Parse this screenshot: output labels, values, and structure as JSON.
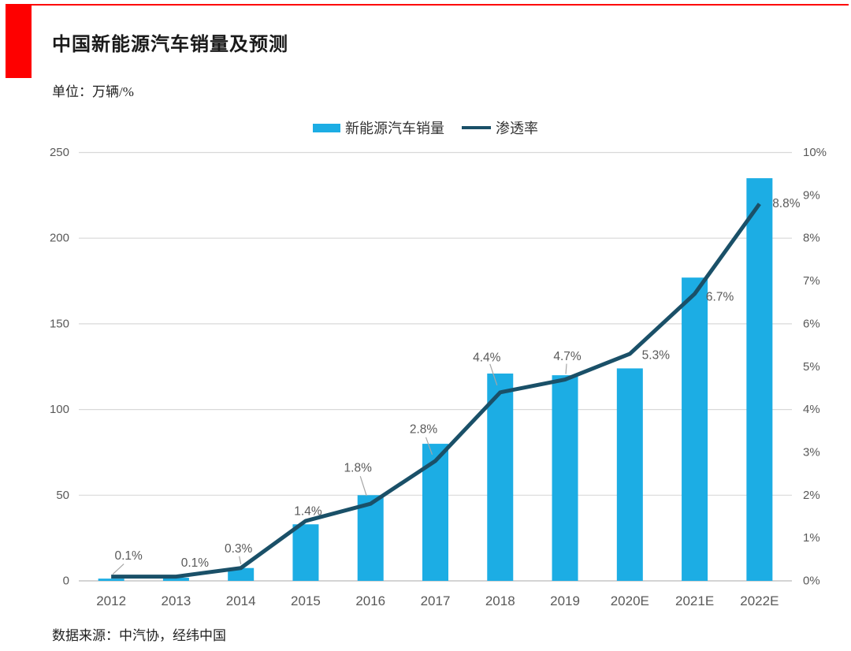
{
  "page": {
    "title": "中国新能源汽车销量及预测",
    "unit_label": "单位：万辆/%",
    "source": "数据来源：中汽协，经纬中国"
  },
  "colors": {
    "accent_red": "#FE0000",
    "bar": "#1CADE4",
    "line": "#1A5068",
    "grid": "#D9D9D9",
    "baseline": "#C6C6C6",
    "axis_text": "#595959",
    "data_label_text": "#595959",
    "leader_line": "#A6A6A6",
    "title_text": "#1A1A1A",
    "legend_text": "#333333",
    "serif_text": "#1F1F1F",
    "background": "#FFFFFF"
  },
  "chart_data": {
    "type": "bar+line combo",
    "title": "中国新能源汽车销量及预测",
    "unit": "万辆/%",
    "categories": [
      "2012",
      "2013",
      "2014",
      "2015",
      "2016",
      "2017",
      "2018",
      "2019",
      "2020E",
      "2021E",
      "2022E"
    ],
    "series": [
      {
        "name": "新能源汽车销量",
        "chart_type": "bar",
        "axis": "left",
        "values": [
          1.3,
          1.8,
          7.5,
          33,
          50,
          80,
          121,
          120,
          124,
          177,
          235
        ]
      },
      {
        "name": "渗透率",
        "chart_type": "line",
        "axis": "right",
        "values": [
          0.1,
          0.1,
          0.3,
          1.4,
          1.8,
          2.8,
          4.4,
          4.7,
          5.3,
          6.7,
          8.8
        ],
        "point_labels": [
          "0.1%",
          "0.1%",
          "0.3%",
          "1.4%",
          "1.8%",
          "2.8%",
          "4.4%",
          "4.7%",
          "5.3%",
          "6.7%",
          "8.8%"
        ]
      }
    ],
    "left_axis": {
      "min": 0,
      "max": 250,
      "tick_values": [
        0,
        50,
        100,
        150,
        200,
        250
      ],
      "tick_labels": [
        "0",
        "50",
        "100",
        "150",
        "200",
        "250"
      ]
    },
    "right_axis": {
      "min": 0,
      "max": 10,
      "tick_values": [
        0,
        1,
        2,
        3,
        4,
        5,
        6,
        7,
        8,
        9,
        10
      ],
      "tick_labels": [
        "0%",
        "1%",
        "2%",
        "3%",
        "4%",
        "5%",
        "6%",
        "7%",
        "8%",
        "9%",
        "10%"
      ]
    },
    "legend_position": "top-center",
    "gridlines": "horizontal"
  }
}
